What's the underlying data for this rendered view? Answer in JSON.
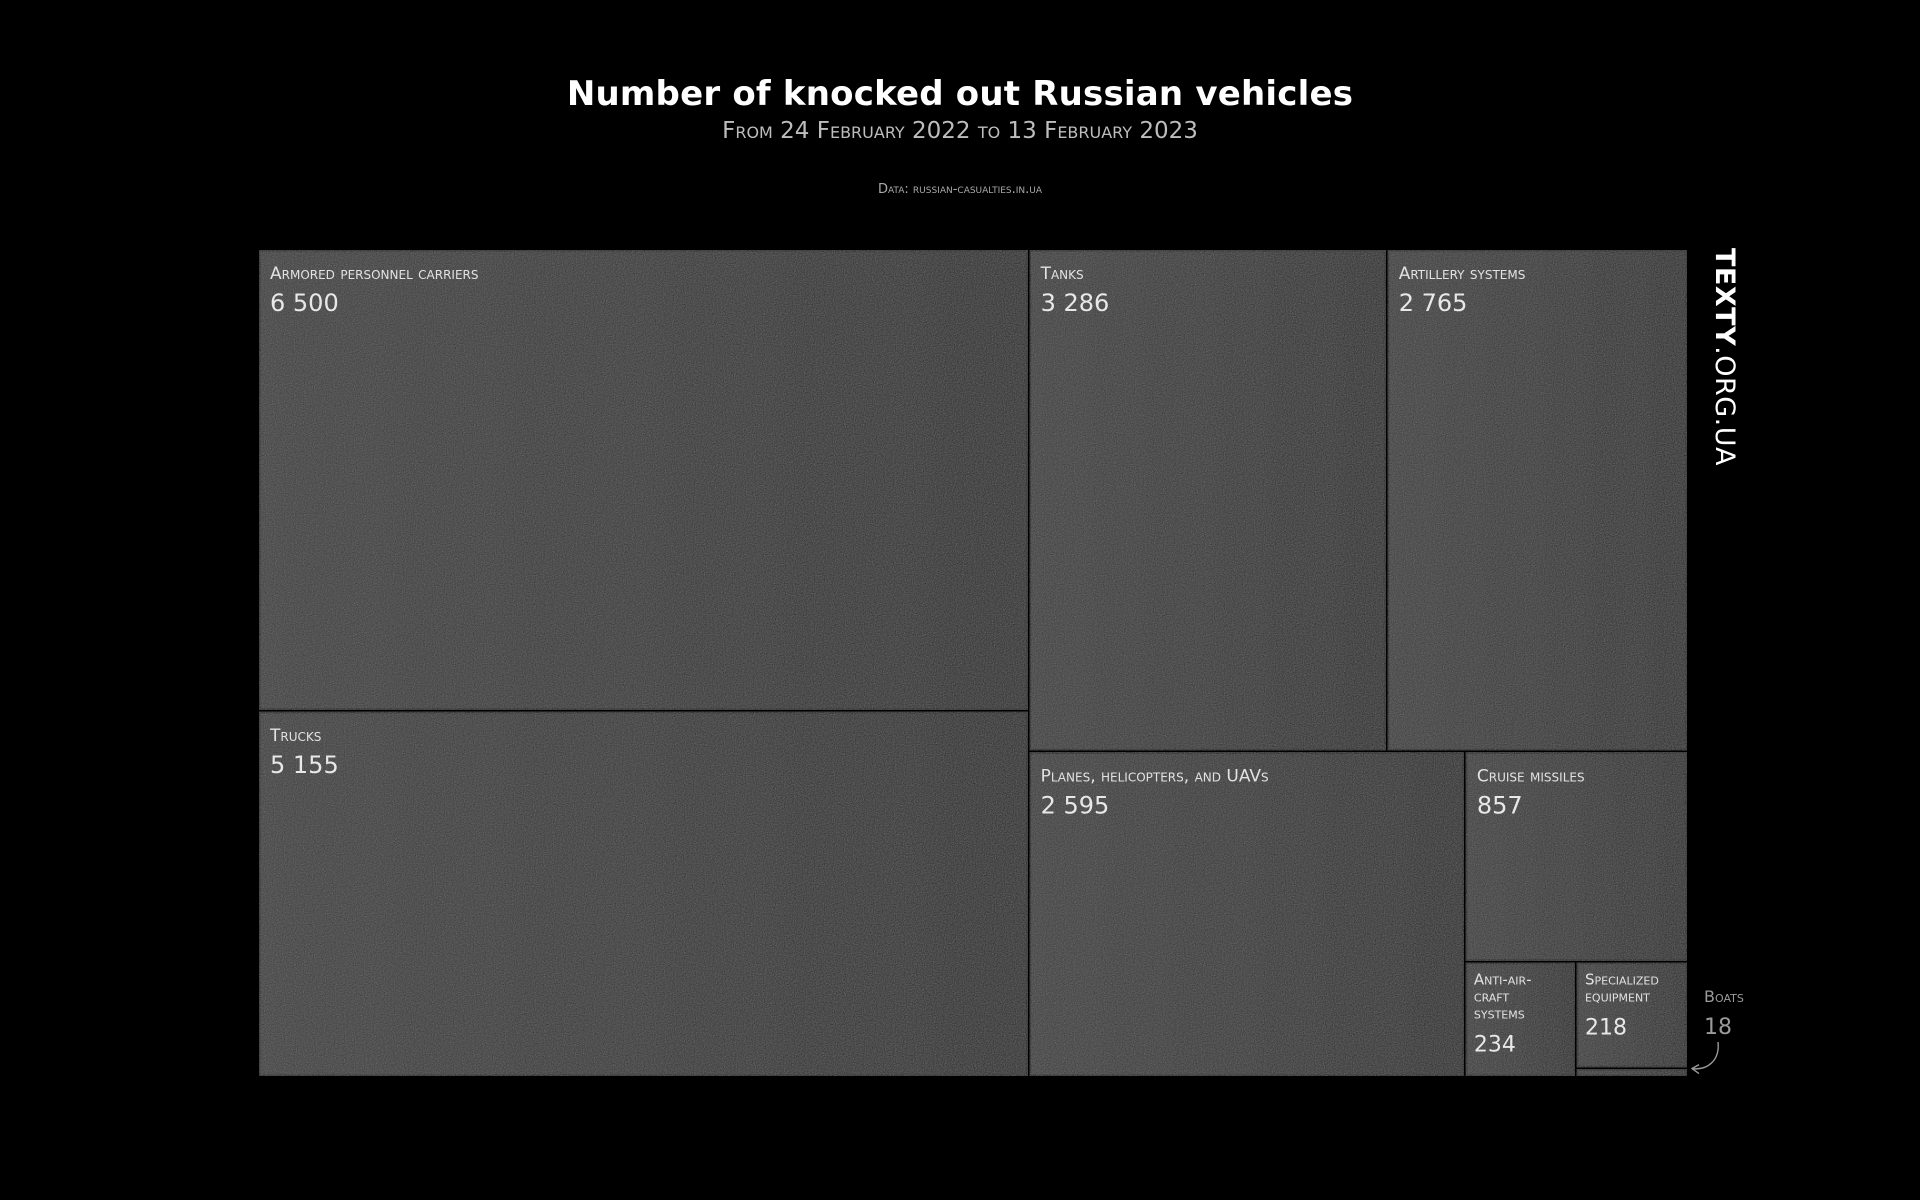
{
  "header": {
    "title": "Number of knocked out Russian vehicles",
    "subtitle": "From 24 February 2022 to 13 February 2023",
    "source": "Data: russian-casualties.in.ua"
  },
  "brand": {
    "bold": "TEXTY",
    "rest": ".ORG.UA"
  },
  "colors": {
    "background": "#000000",
    "cell_fill": "#2c2c2c",
    "cell_border": "#111111",
    "text": "#ffffff"
  },
  "chart_data": {
    "type": "treemap",
    "title": "Number of knocked out Russian vehicles",
    "subtitle": "From 24 February 2022 to 13 February 2023",
    "categories": [
      "Armored personnel carriers",
      "Trucks",
      "Tanks",
      "Artillery systems",
      "Planes, helicopters, and UAVs",
      "Cruise missiles",
      "Anti-air-craft systems",
      "Specialized equipment",
      "Boats"
    ],
    "values": [
      6500,
      5155,
      3286,
      2765,
      2595,
      857,
      234,
      218,
      18
    ],
    "labels": [
      {
        "name": [
          "Armored personnel carriers"
        ],
        "value": "6 500"
      },
      {
        "name": [
          "Trucks"
        ],
        "value": "5 155"
      },
      {
        "name": [
          "Tanks"
        ],
        "value": "3 286"
      },
      {
        "name": [
          "Artillery systems"
        ],
        "value": "2 765"
      },
      {
        "name": [
          "Planes, helicopters, and UAVs"
        ],
        "value": "2 595"
      },
      {
        "name": [
          "Cruise missiles"
        ],
        "value": "857"
      },
      {
        "name": [
          "Anti-air-",
          "craft",
          "systems"
        ],
        "value": "234"
      },
      {
        "name": [
          "Specialized",
          "equipment"
        ],
        "value": "218"
      },
      {
        "name": [
          "Boats"
        ],
        "value": "18"
      }
    ]
  }
}
